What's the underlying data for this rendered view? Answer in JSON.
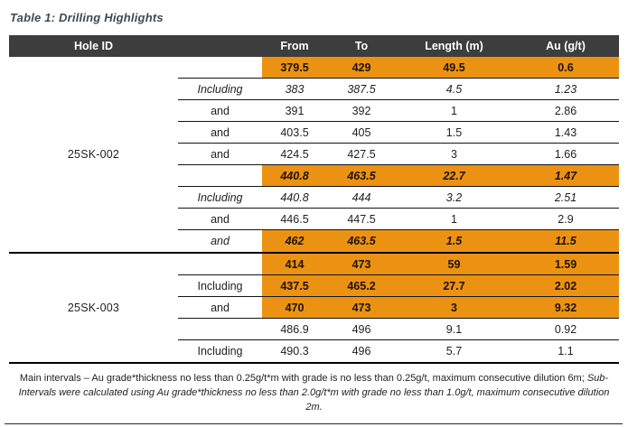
{
  "title": "Table 1: Drilling Highlights",
  "colors": {
    "highlight_orange": "#EC9213",
    "header_bg": "#3D3D3D",
    "title_text": "#3E4A56",
    "row_border": "#141414"
  },
  "table": {
    "headers": {
      "hole_id": "Hole ID",
      "from": "From",
      "to": "To",
      "length": "Length (m)",
      "au": "Au (g/t)"
    },
    "groups": [
      {
        "hole_id": "25SK-002",
        "rows": [
          {
            "qualifier": "",
            "from": "379.5",
            "to": "429",
            "length": "49.5",
            "au": "0.6",
            "highlight": true,
            "bold": true,
            "italic": false,
            "qualifier_italic": false
          },
          {
            "qualifier": "Including",
            "from": "383",
            "to": "387.5",
            "length": "4.5",
            "au": "1.23",
            "highlight": false,
            "bold": false,
            "italic": true,
            "qualifier_italic": true
          },
          {
            "qualifier": "and",
            "from": "391",
            "to": "392",
            "length": "1",
            "au": "2.86",
            "highlight": false,
            "bold": false,
            "italic": false,
            "qualifier_italic": false
          },
          {
            "qualifier": "and",
            "from": "403.5",
            "to": "405",
            "length": "1.5",
            "au": "1.43",
            "highlight": false,
            "bold": false,
            "italic": false,
            "qualifier_italic": false
          },
          {
            "qualifier": "and",
            "from": "424.5",
            "to": "427.5",
            "length": "3",
            "au": "1.66",
            "highlight": false,
            "bold": false,
            "italic": false,
            "qualifier_italic": false
          },
          {
            "qualifier": "",
            "from": "440.8",
            "to": "463.5",
            "length": "22.7",
            "au": "1.47",
            "highlight": true,
            "bold": true,
            "italic": true,
            "qualifier_italic": false
          },
          {
            "qualifier": "Including",
            "from": "440.8",
            "to": "444",
            "length": "3.2",
            "au": "2.51",
            "highlight": false,
            "bold": false,
            "italic": true,
            "qualifier_italic": true
          },
          {
            "qualifier": "and",
            "from": "446.5",
            "to": "447.5",
            "length": "1",
            "au": "2.9",
            "highlight": false,
            "bold": false,
            "italic": false,
            "qualifier_italic": false
          },
          {
            "qualifier": "and",
            "from": "462",
            "to": "463.5",
            "length": "1.5",
            "au": "11.5",
            "highlight": true,
            "bold": true,
            "italic": true,
            "qualifier_italic": true
          }
        ]
      },
      {
        "hole_id": "25SK-003",
        "rows": [
          {
            "qualifier": "",
            "from": "414",
            "to": "473",
            "length": "59",
            "au": "1.59",
            "highlight": true,
            "bold": true,
            "italic": false,
            "qualifier_italic": false
          },
          {
            "qualifier": "Including",
            "from": "437.5",
            "to": "465.2",
            "length": "27.7",
            "au": "2.02",
            "highlight": true,
            "bold": true,
            "italic": false,
            "qualifier_italic": false
          },
          {
            "qualifier": "and",
            "from": "470",
            "to": "473",
            "length": "3",
            "au": "9.32",
            "highlight": true,
            "bold": true,
            "italic": false,
            "qualifier_italic": false
          },
          {
            "qualifier": "",
            "from": "486.9",
            "to": "496",
            "length": "9.1",
            "au": "0.92",
            "highlight": false,
            "bold": false,
            "italic": false,
            "qualifier_italic": false
          },
          {
            "qualifier": "Including",
            "from": "490.3",
            "to": "496",
            "length": "5.7",
            "au": "1.1",
            "highlight": false,
            "bold": false,
            "italic": false,
            "qualifier_italic": false
          }
        ]
      }
    ]
  },
  "footnote": {
    "regular": "Main intervals – Au grade*thickness no less than 0.25g/t*m with grade is no less than 0.25g/t, maximum consecutive dilution 6m; ",
    "italic": "Sub-Intervals were calculated using Au grade*thickness no less than 2.0g/t*m with grade no less than 1.0g/t, maximum consecutive dilution 2m."
  }
}
